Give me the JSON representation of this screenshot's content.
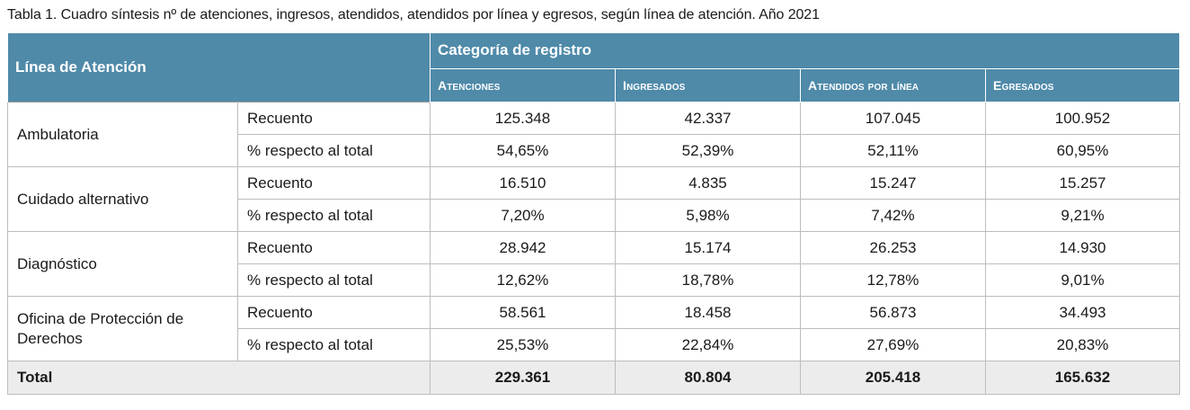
{
  "caption": "Tabla 1. Cuadro síntesis nº de atenciones, ingresos, atendidos, atendidos por línea y egresos, según línea de atención. Año 2021",
  "header": {
    "linea": "Línea de Atención",
    "categoria": "Categoría de registro",
    "columns": [
      "Atenciones",
      "Ingresados",
      "Atendidos por línea",
      "Egresados"
    ]
  },
  "groups": [
    {
      "label": "Ambulatoria",
      "rows": [
        {
          "metric": "Recuento",
          "values": [
            "125.348",
            "42.337",
            "107.045",
            "100.952"
          ]
        },
        {
          "metric": "% respecto al total",
          "values": [
            "54,65%",
            "52,39%",
            "52,11%",
            "60,95%"
          ]
        }
      ]
    },
    {
      "label": "Cuidado alternativo",
      "rows": [
        {
          "metric": "Recuento",
          "values": [
            "16.510",
            "4.835",
            "15.247",
            "15.257"
          ]
        },
        {
          "metric": "% respecto al total",
          "values": [
            "7,20%",
            "5,98%",
            "7,42%",
            "9,21%"
          ]
        }
      ]
    },
    {
      "label": "Diagnóstico",
      "rows": [
        {
          "metric": "Recuento",
          "values": [
            "28.942",
            "15.174",
            "26.253",
            "14.930"
          ]
        },
        {
          "metric": "% respecto al total",
          "values": [
            "12,62%",
            "18,78%",
            "12,78%",
            "9,01%"
          ]
        }
      ]
    },
    {
      "label": "Oficina de Protección de Derechos",
      "rows": [
        {
          "metric": "Recuento",
          "values": [
            "58.561",
            "18.458",
            "56.873",
            "34.493"
          ]
        },
        {
          "metric": "% respecto al total",
          "values": [
            "25,53%",
            "22,84%",
            "27,69%",
            "20,83%"
          ]
        }
      ]
    }
  ],
  "total": {
    "label": "Total",
    "values": [
      "229.361",
      "80.804",
      "205.418",
      "165.632"
    ]
  }
}
